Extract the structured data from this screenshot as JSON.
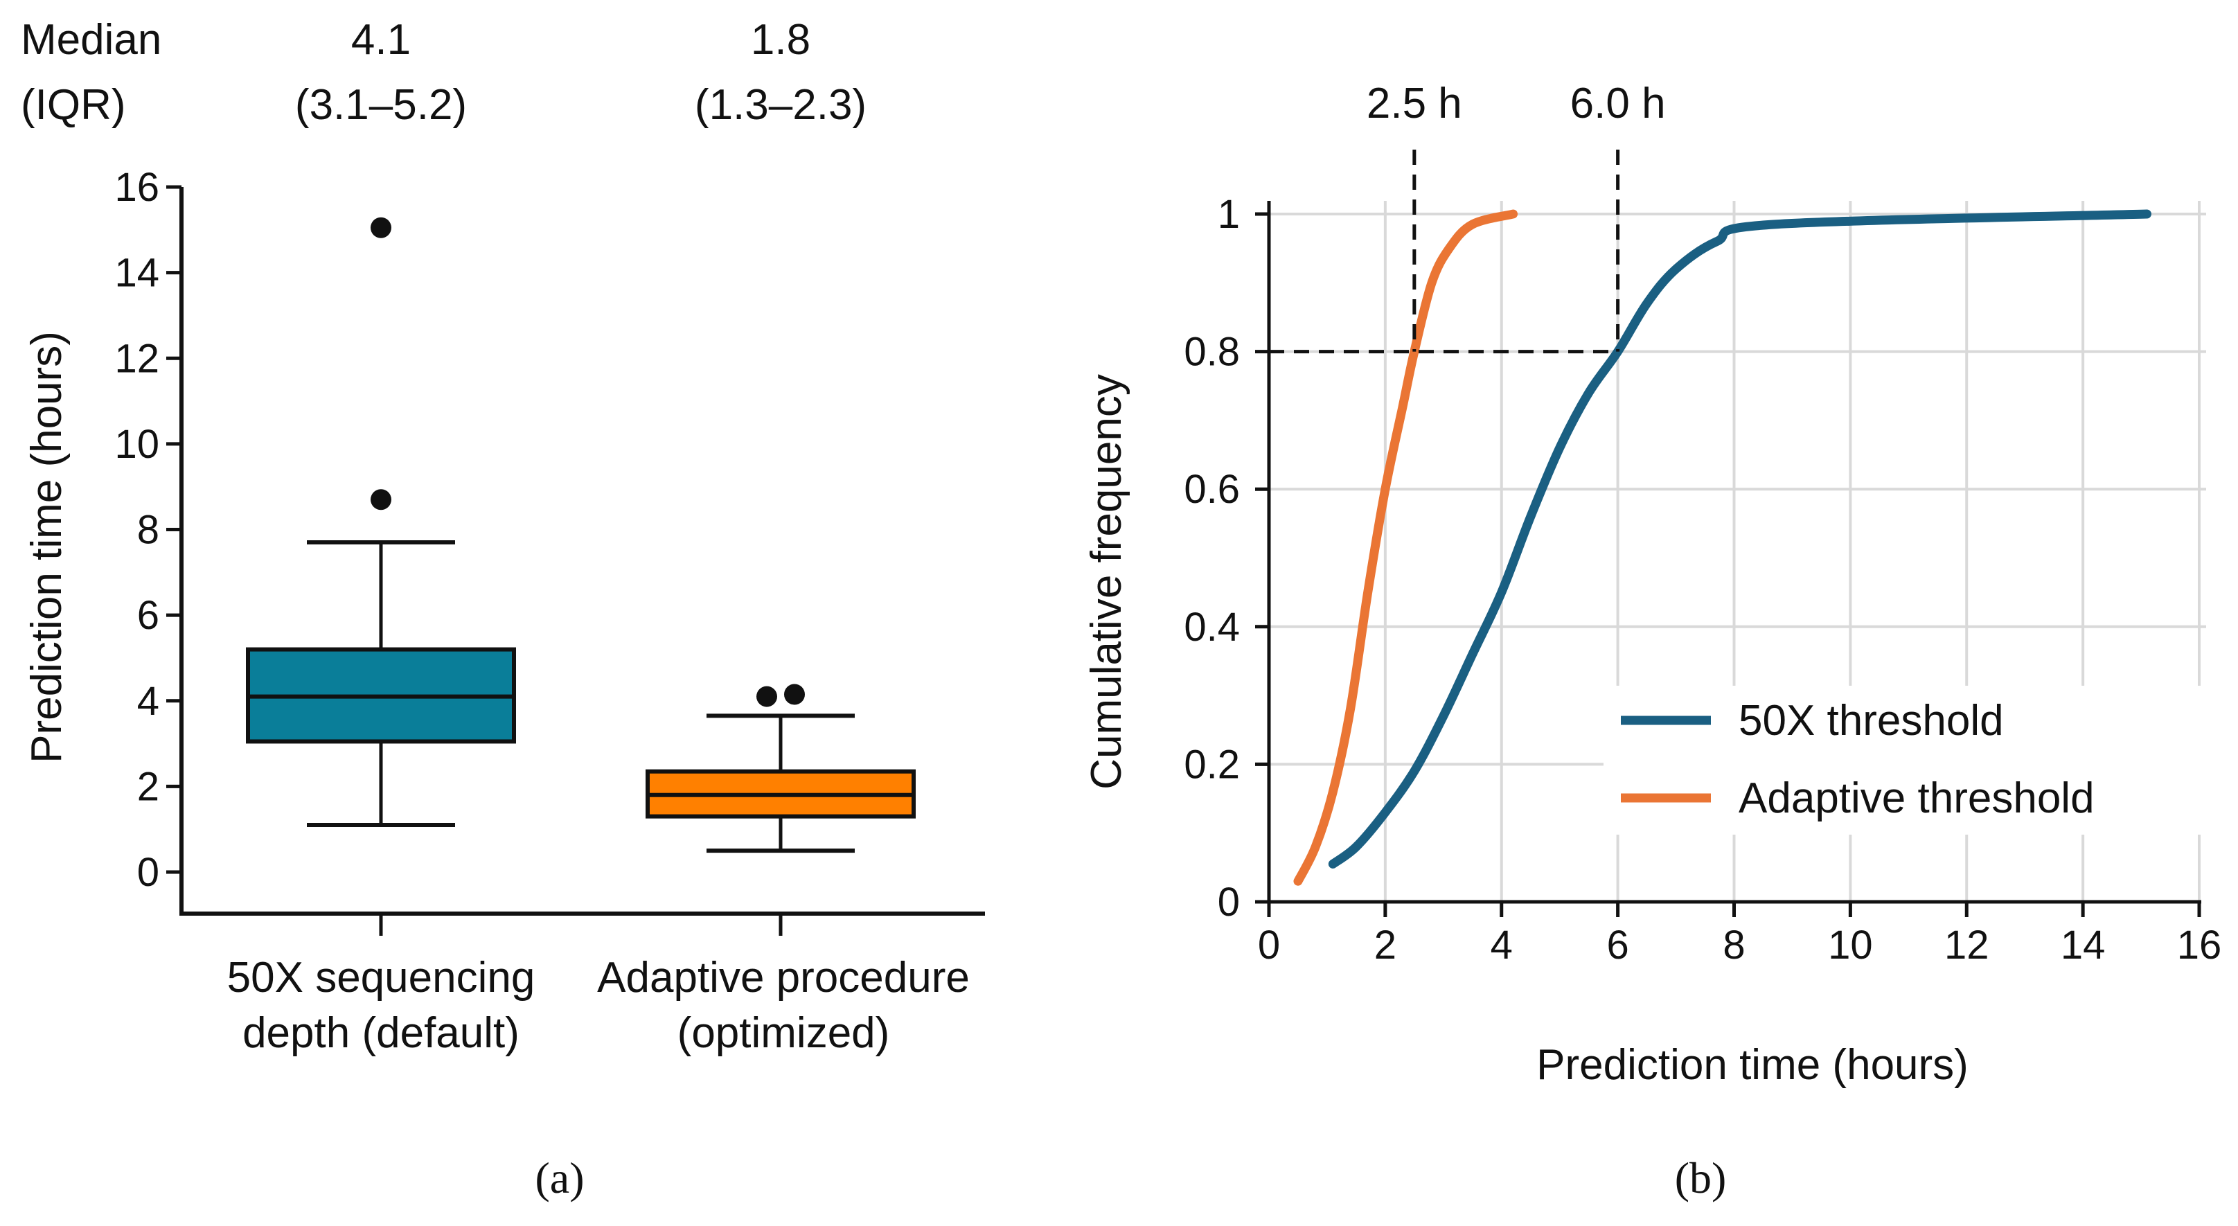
{
  "colors": {
    "box_default": "#0A7E99",
    "box_adaptive": "#FF8000",
    "line_50x": "#1A5F82",
    "line_adaptive": "#EA7534",
    "grid": "#D9D9D9"
  },
  "chart_data": [
    {
      "type": "box",
      "panel_label": "(a)",
      "ylabel": "Prediction time (hours)",
      "ylim": [
        0,
        16
      ],
      "yticks": [
        "0",
        "2",
        "4",
        "6",
        "8",
        "10",
        "12",
        "14",
        "16"
      ],
      "summary_header": [
        "Median",
        "(IQR)"
      ],
      "groups": [
        {
          "label_line1": "50X sequencing",
          "label_line2": "depth (default)",
          "median_text": "4.1",
          "iqr_text": "(3.1–5.2)",
          "whisker_low": 1.1,
          "q1": 3.05,
          "median": 4.1,
          "q3": 5.2,
          "whisker_high": 7.7,
          "outliers": [
            8.7,
            15.05
          ]
        },
        {
          "label_line1": "Adaptive procedure",
          "label_line2": "(optimized)",
          "median_text": "1.8",
          "iqr_text": "(1.3–2.3)",
          "whisker_low": 0.5,
          "q1": 1.3,
          "median": 1.8,
          "q3": 2.35,
          "whisker_high": 3.65,
          "outliers": [
            4.1,
            4.15
          ]
        }
      ]
    },
    {
      "type": "line",
      "panel_label": "(b)",
      "xlabel": "Prediction time (hours)",
      "ylabel": "Cumulative frequency",
      "xlim": [
        0,
        16
      ],
      "ylim": [
        0,
        1
      ],
      "xticks": [
        "0",
        "2",
        "4",
        "6",
        "8",
        "10",
        "12",
        "14",
        "16"
      ],
      "yticks": [
        "0",
        "0.2",
        "0.4",
        "0.6",
        "0.8",
        "1"
      ],
      "grid": true,
      "legend_position": "bottom-right",
      "annotations": [
        {
          "x": 2.5,
          "y": 0.8,
          "label": "2.5 h"
        },
        {
          "x": 6.0,
          "y": 0.8,
          "label": "6.0 h"
        }
      ],
      "series": [
        {
          "name": "50X threshold",
          "x": [
            1.1,
            1.5,
            2,
            2.5,
            3,
            3.5,
            4,
            4.5,
            5,
            5.5,
            6,
            6.5,
            7,
            7.7,
            8.7,
            15.1
          ],
          "y": [
            0.055,
            0.08,
            0.13,
            0.19,
            0.27,
            0.36,
            0.45,
            0.56,
            0.66,
            0.74,
            0.8,
            0.87,
            0.92,
            0.96,
            0.985,
            1.0
          ]
        },
        {
          "name": "Adaptive threshold",
          "x": [
            0.5,
            0.8,
            1.1,
            1.4,
            1.7,
            2.0,
            2.3,
            2.5,
            2.8,
            3.1,
            3.5,
            4.2
          ],
          "y": [
            0.03,
            0.08,
            0.16,
            0.28,
            0.45,
            0.6,
            0.72,
            0.8,
            0.9,
            0.95,
            0.985,
            1.0
          ]
        }
      ]
    }
  ]
}
